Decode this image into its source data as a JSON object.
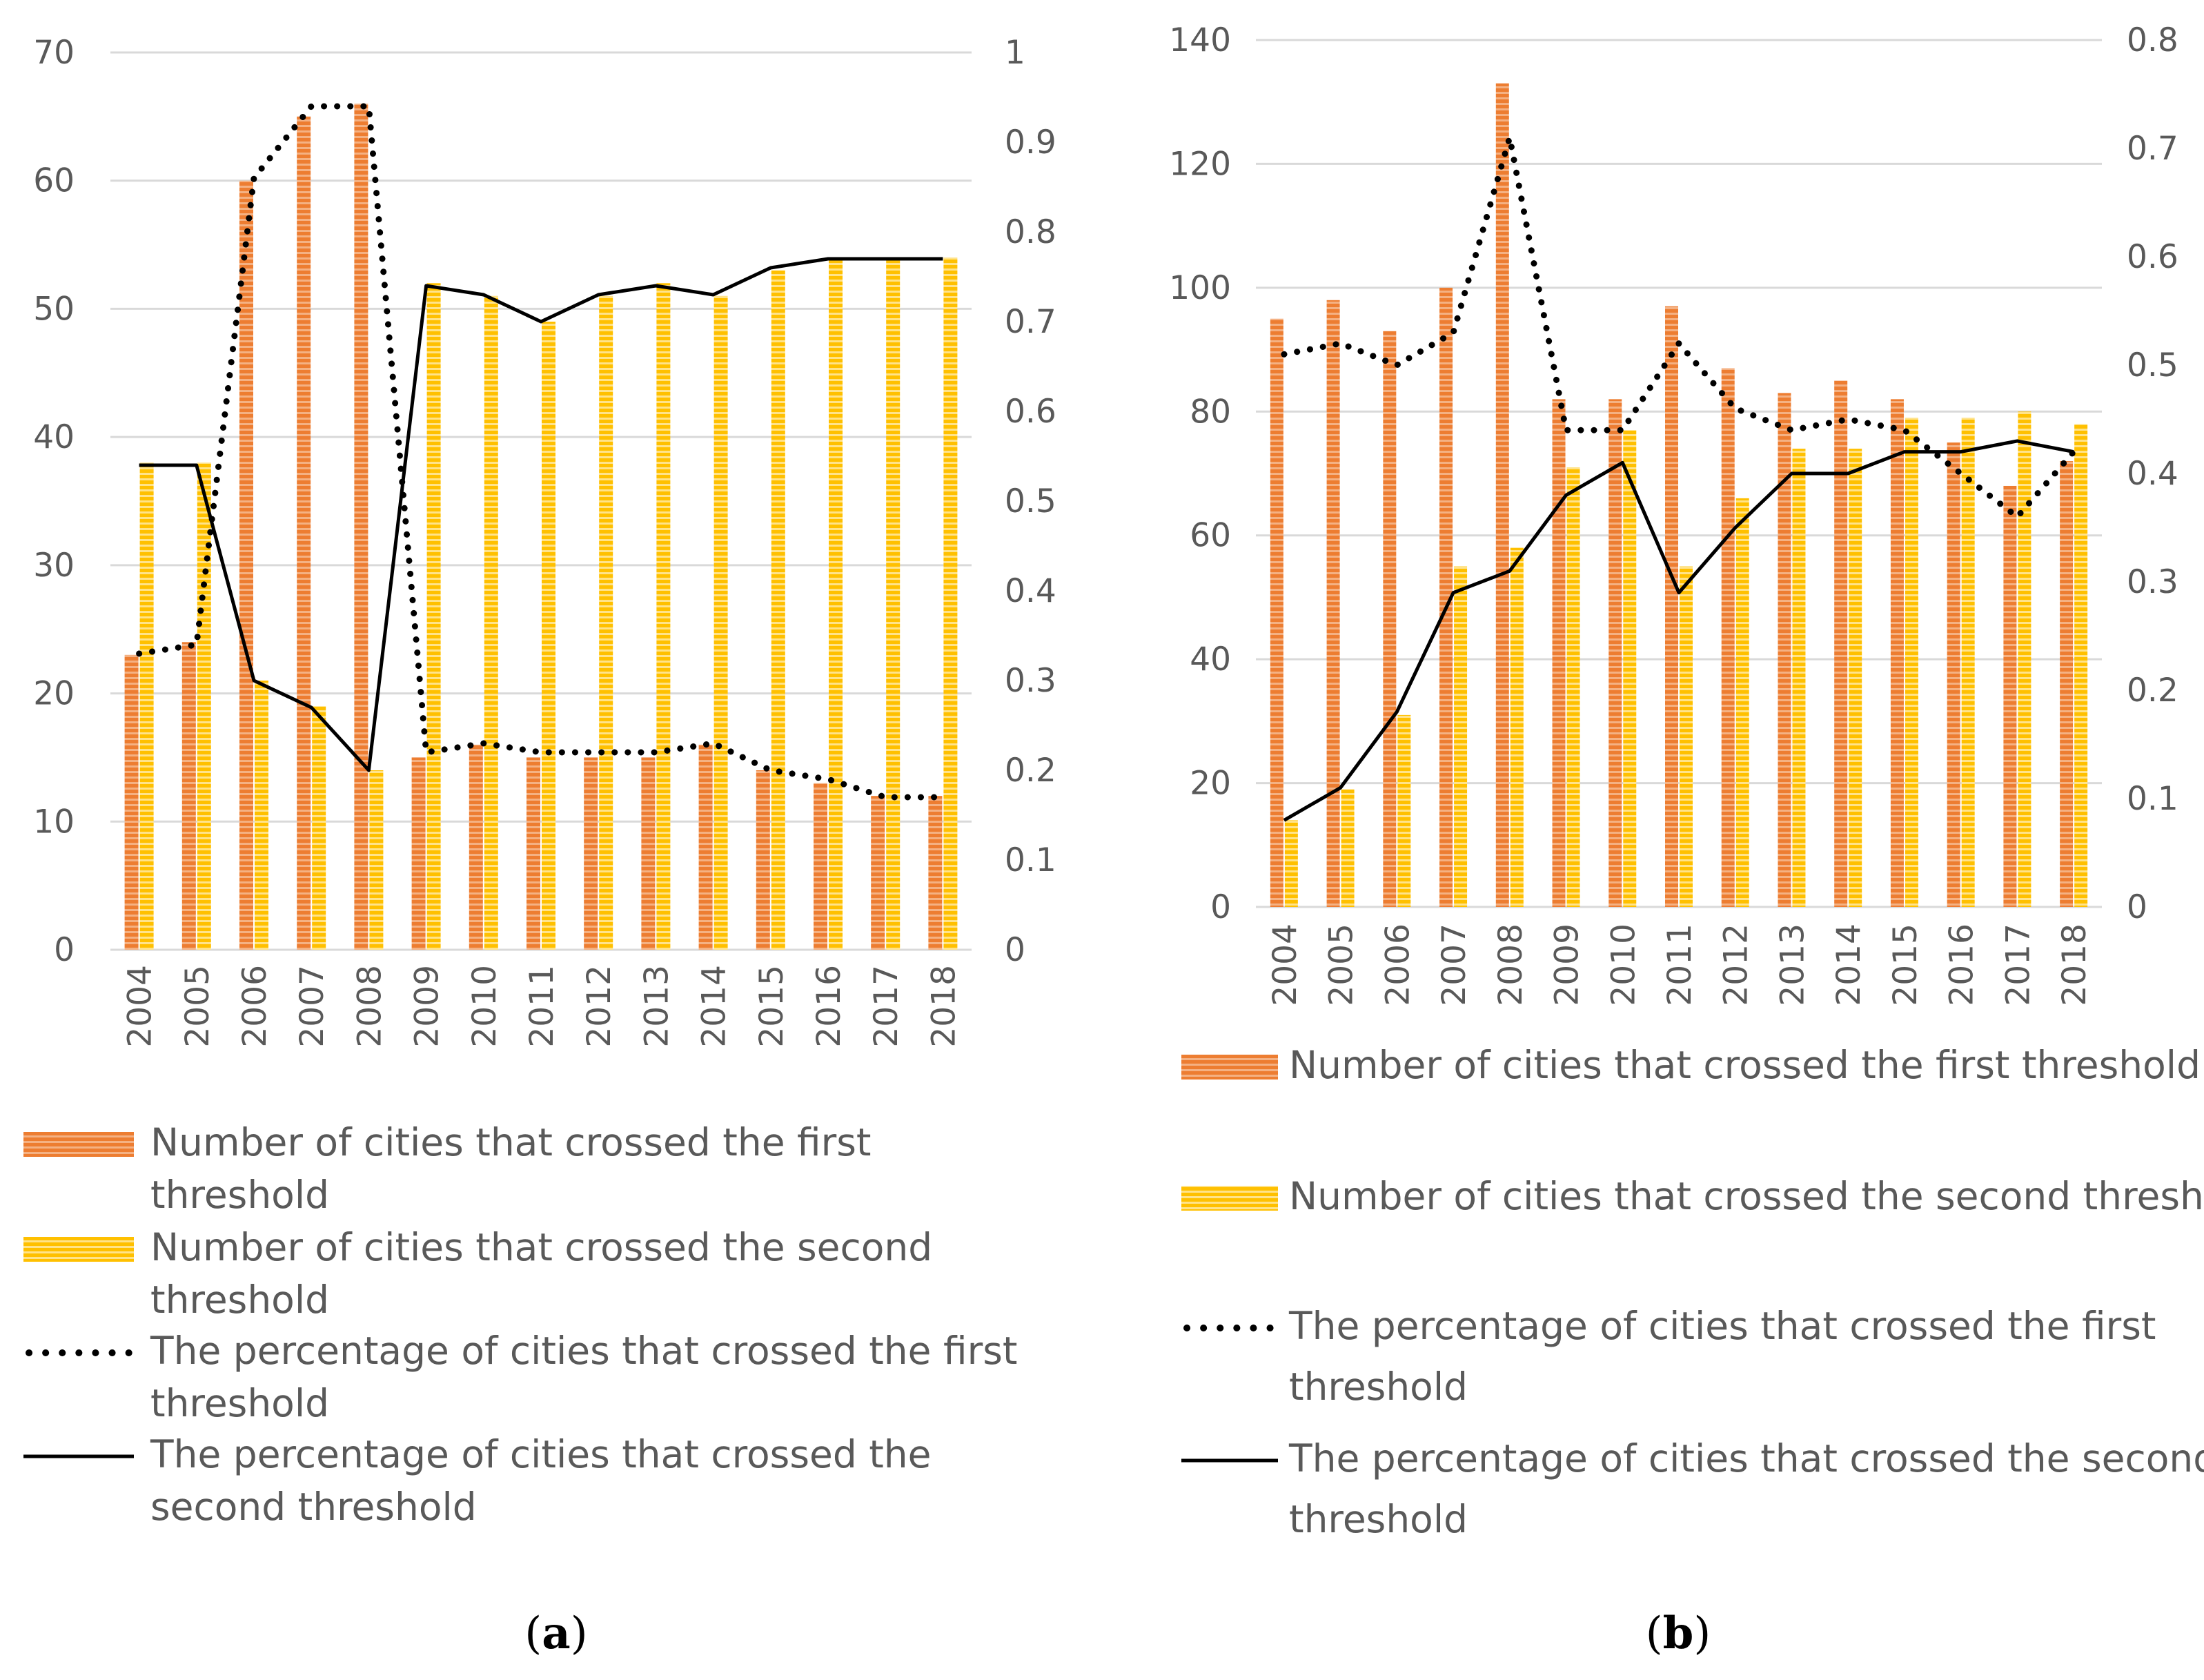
{
  "chart_data": [
    {
      "id": "a",
      "type": "bar+line",
      "caption_label": "a",
      "categories": [
        "2004",
        "2005",
        "2006",
        "2007",
        "2008",
        "2009",
        "2010",
        "2011",
        "2012",
        "2013",
        "2014",
        "2015",
        "2016",
        "2017",
        "2018"
      ],
      "series": [
        {
          "name": "Number of cities that crossed the first threshold",
          "kind": "bar",
          "axis": "left",
          "color": "#ed7d31",
          "values": [
            23,
            24,
            60,
            65,
            66,
            15,
            16,
            15,
            15,
            15,
            16,
            14,
            13,
            12,
            12
          ]
        },
        {
          "name": "Number of cities that crossed the second threshold",
          "kind": "bar",
          "axis": "left",
          "color": "#ffc000",
          "values": [
            38,
            38,
            21,
            19,
            14,
            52,
            51,
            49,
            51,
            52,
            51,
            53,
            54,
            54,
            54
          ]
        },
        {
          "name": "The percentage of cities that crossed the first threshold",
          "kind": "line",
          "style": "dotted",
          "axis": "right",
          "color": "#000000",
          "values": [
            0.33,
            0.34,
            0.86,
            0.94,
            0.94,
            0.22,
            0.23,
            0.22,
            0.22,
            0.22,
            0.23,
            0.2,
            0.19,
            0.17,
            0.17
          ]
        },
        {
          "name": "The percentage of cities that crossed the second threshold",
          "kind": "line",
          "style": "solid",
          "axis": "right",
          "color": "#000000",
          "values": [
            0.54,
            0.54,
            0.3,
            0.27,
            0.2,
            0.74,
            0.73,
            0.7,
            0.73,
            0.74,
            0.73,
            0.76,
            0.77,
            0.77,
            0.77
          ]
        }
      ],
      "y_left": {
        "min": 0,
        "max": 70,
        "ticks": [
          "0",
          "10",
          "20",
          "30",
          "40",
          "50",
          "60",
          "70"
        ]
      },
      "y_right": {
        "min": 0,
        "max": 1,
        "ticks": [
          "0",
          "0.1",
          "0.2",
          "0.3",
          "0.4",
          "0.5",
          "0.6",
          "0.7",
          "0.8",
          "0.9",
          "1"
        ]
      },
      "legend_lines": [
        [
          "Number of cities that crossed the first",
          "threshold"
        ],
        [
          "Number of cities that crossed the second",
          "threshold"
        ],
        [
          "The percentage of cities that crossed the first",
          "threshold"
        ],
        [
          "The percentage of cities that crossed the",
          "second threshold"
        ]
      ]
    },
    {
      "id": "b",
      "type": "bar+line",
      "caption_label": "b",
      "categories": [
        "2004",
        "2005",
        "2006",
        "2007",
        "2008",
        "2009",
        "2010",
        "2011",
        "2012",
        "2013",
        "2014",
        "2015",
        "2016",
        "2017",
        "2018"
      ],
      "series": [
        {
          "name": "Number of cities that crossed the first threshold",
          "kind": "bar",
          "axis": "left",
          "color": "#ed7d31",
          "values": [
            95,
            98,
            93,
            100,
            133,
            82,
            82,
            97,
            87,
            83,
            85,
            82,
            75,
            68,
            72
          ]
        },
        {
          "name": "Number of cities that crossed the second threshold",
          "kind": "bar",
          "axis": "left",
          "color": "#ffc000",
          "values": [
            14,
            19,
            31,
            55,
            58,
            71,
            77,
            55,
            66,
            74,
            74,
            79,
            79,
            80,
            78
          ]
        },
        {
          "name": "The percentage of cities that crossed the first threshold",
          "kind": "line",
          "style": "dotted",
          "axis": "right",
          "color": "#000000",
          "values": [
            0.51,
            0.52,
            0.5,
            0.53,
            0.71,
            0.44,
            0.44,
            0.52,
            0.46,
            0.44,
            0.45,
            0.44,
            0.4,
            0.36,
            0.42
          ]
        },
        {
          "name": "The percentage of cities that crossed the second threshold",
          "kind": "line",
          "style": "solid",
          "axis": "right",
          "color": "#000000",
          "values": [
            0.08,
            0.11,
            0.18,
            0.29,
            0.31,
            0.38,
            0.41,
            0.29,
            0.35,
            0.4,
            0.4,
            0.42,
            0.42,
            0.43,
            0.42
          ]
        }
      ],
      "y_left": {
        "min": 0,
        "max": 140,
        "ticks": [
          "0",
          "20",
          "40",
          "60",
          "80",
          "100",
          "120",
          "140"
        ]
      },
      "y_right": {
        "min": 0,
        "max": 0.8,
        "ticks": [
          "0",
          "0.1",
          "0.2",
          "0.3",
          "0.4",
          "0.5",
          "0.6",
          "0.7",
          "0.8"
        ]
      },
      "legend_lines": [
        [
          "Number of cities that crossed the first threshold"
        ],
        [
          "Number of cities that crossed the second threshold"
        ],
        [
          "The percentage of cities that crossed the first",
          "threshold"
        ],
        [
          "The percentage of cities that crossed the second",
          "threshold"
        ]
      ]
    }
  ]
}
